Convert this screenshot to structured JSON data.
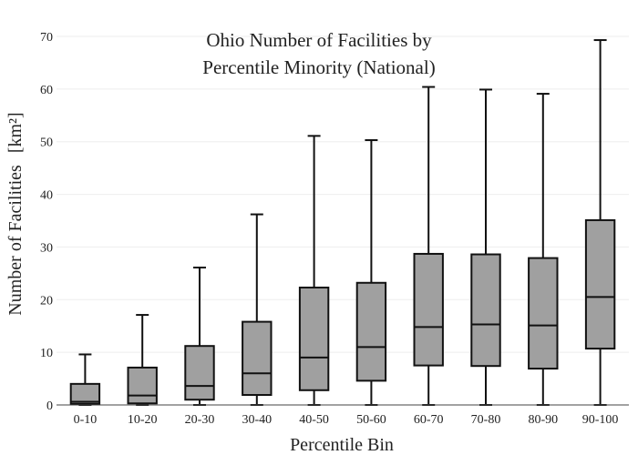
{
  "chart_data": {
    "type": "box",
    "title": [
      "Ohio Number of Facilities by",
      "Percentile Minority (National)"
    ],
    "xlabel": "Percentile Bin",
    "ylabel": "Number of Facilities",
    "ylabel_unit": "[km²]",
    "ylim": [
      0,
      70
    ],
    "yticks": [
      0,
      10,
      20,
      30,
      40,
      50,
      60,
      70
    ],
    "grid": true,
    "legend": "none",
    "box_color": "#a0a0a0",
    "categories": [
      "0-10",
      "10-20",
      "20-30",
      "30-40",
      "40-50",
      "50-60",
      "60-70",
      "70-80",
      "80-90",
      "90-100"
    ],
    "boxes": [
      {
        "min": 0,
        "q1": 0.2,
        "median": 0.6,
        "q3": 4.0,
        "max": 9.6
      },
      {
        "min": 0,
        "q1": 0.3,
        "median": 1.8,
        "q3": 7.1,
        "max": 17.1
      },
      {
        "min": 0,
        "q1": 1.0,
        "median": 3.6,
        "q3": 11.2,
        "max": 26.1
      },
      {
        "min": 0,
        "q1": 1.9,
        "median": 6.0,
        "q3": 15.8,
        "max": 36.2
      },
      {
        "min": 0,
        "q1": 2.8,
        "median": 9.0,
        "q3": 22.3,
        "max": 51.1
      },
      {
        "min": 0,
        "q1": 4.6,
        "median": 11.0,
        "q3": 23.2,
        "max": 50.3
      },
      {
        "min": 0,
        "q1": 7.5,
        "median": 14.8,
        "q3": 28.7,
        "max": 60.4
      },
      {
        "min": 0,
        "q1": 7.4,
        "median": 15.3,
        "q3": 28.6,
        "max": 59.9
      },
      {
        "min": 0,
        "q1": 6.9,
        "median": 15.1,
        "q3": 27.9,
        "max": 59.1
      },
      {
        "min": 0,
        "q1": 10.7,
        "median": 20.5,
        "q3": 35.1,
        "max": 69.3
      }
    ]
  }
}
